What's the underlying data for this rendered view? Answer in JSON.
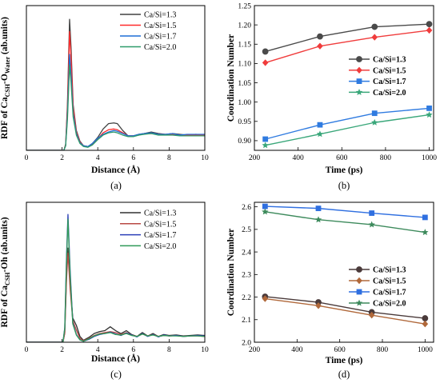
{
  "chart_data": [
    {
      "id": "a",
      "type": "line",
      "caption": "(a)",
      "xlabel": "Distance (Å)",
      "ylabel": {
        "pre": "RDF of Ca",
        "sub1": "CSH",
        "mid": "-O",
        "sub2": "Water",
        "post": " (ab.units)"
      },
      "xlim": [
        0,
        10
      ],
      "ylim": [
        0,
        9.5
      ],
      "xticks": [
        "0",
        "2",
        "4",
        "6",
        "8",
        "10"
      ],
      "yticks": [],
      "grid": false,
      "legend_position": "top-right",
      "colors": [
        "#404040",
        "#ff2a2a",
        "#1f6fd6",
        "#2e9b6a"
      ],
      "series": [
        {
          "name": "Ca/Si=1.3",
          "x": [
            0,
            2.1,
            2.2,
            2.3,
            2.42,
            2.5,
            2.62,
            2.8,
            3.0,
            3.2,
            3.45,
            3.7,
            4.0,
            4.3,
            4.6,
            4.9,
            5.1,
            5.4,
            5.7,
            6.0,
            6.3,
            6.6,
            7.0,
            7.4,
            7.8,
            8.2,
            8.6,
            9.0,
            9.5,
            10
          ],
          "y": [
            0,
            0,
            0.4,
            3.0,
            8.6,
            6.8,
            3.0,
            1.3,
            0.6,
            0.3,
            0.25,
            0.45,
            0.85,
            1.4,
            1.75,
            1.8,
            1.75,
            1.3,
            0.95,
            0.95,
            1.05,
            1.1,
            1.2,
            1.1,
            1.05,
            1.1,
            1.05,
            1.0,
            1.05,
            1.0
          ]
        },
        {
          "name": "Ca/Si=1.5",
          "x": [
            0,
            2.1,
            2.2,
            2.3,
            2.42,
            2.5,
            2.62,
            2.8,
            3.0,
            3.2,
            3.45,
            3.7,
            4.0,
            4.3,
            4.6,
            4.9,
            5.1,
            5.4,
            5.7,
            6.0,
            6.3,
            6.6,
            7.0,
            7.4,
            7.8,
            8.2,
            8.6,
            9.0,
            9.5,
            10
          ],
          "y": [
            0,
            0,
            0.35,
            2.7,
            7.8,
            6.1,
            2.8,
            1.2,
            0.55,
            0.3,
            0.25,
            0.4,
            0.75,
            1.15,
            1.35,
            1.4,
            1.35,
            1.15,
            0.95,
            0.95,
            1.0,
            1.1,
            1.1,
            1.05,
            1.05,
            1.05,
            1.0,
            1.0,
            1.0,
            1.0
          ]
        },
        {
          "name": "Ca/Si=1.7",
          "x": [
            0,
            2.1,
            2.2,
            2.3,
            2.42,
            2.5,
            2.62,
            2.8,
            3.0,
            3.2,
            3.45,
            3.7,
            4.0,
            4.3,
            4.6,
            4.9,
            5.1,
            5.4,
            5.7,
            6.0,
            6.3,
            6.6,
            7.0,
            7.4,
            7.8,
            8.2,
            8.6,
            9.0,
            9.5,
            10
          ],
          "y": [
            0,
            0,
            0.3,
            2.3,
            6.3,
            5.0,
            2.4,
            1.1,
            0.5,
            0.3,
            0.25,
            0.45,
            0.8,
            1.05,
            1.2,
            1.3,
            1.25,
            1.1,
            0.95,
            0.95,
            1.05,
            1.1,
            1.15,
            1.05,
            1.05,
            1.1,
            1.0,
            1.05,
            1.05,
            1.05
          ]
        },
        {
          "name": "Ca/Si=2.0",
          "x": [
            0,
            2.1,
            2.2,
            2.3,
            2.42,
            2.5,
            2.62,
            2.8,
            3.0,
            3.2,
            3.45,
            3.7,
            4.0,
            4.3,
            4.6,
            4.9,
            5.1,
            5.4,
            5.7,
            6.0,
            6.3,
            6.6,
            7.0,
            7.4,
            7.8,
            8.2,
            8.6,
            9.0,
            9.5,
            10
          ],
          "y": [
            0,
            0,
            0.3,
            2.0,
            5.6,
            4.5,
            2.2,
            1.0,
            0.45,
            0.25,
            0.2,
            0.35,
            0.7,
            1.0,
            1.15,
            1.2,
            1.15,
            1.0,
            0.9,
            0.9,
            1.0,
            1.05,
            1.1,
            1.0,
            1.0,
            1.0,
            0.95,
            0.95,
            0.95,
            0.95
          ]
        }
      ]
    },
    {
      "id": "b",
      "type": "line",
      "caption": "(b)",
      "xlabel": "Time (ps)",
      "ylabel": "Coordination Number",
      "xlim": [
        200,
        1020
      ],
      "ylim": [
        0.875,
        1.25
      ],
      "xticks": [
        200,
        400,
        600,
        800,
        1000
      ],
      "yticks": [
        "0.90",
        "0.95",
        "1.00",
        "1.05",
        "1.10",
        "1.15",
        "1.20",
        "1.25"
      ],
      "yticks_values": [
        0.9,
        0.95,
        1.0,
        1.05,
        1.1,
        1.15,
        1.2,
        1.25
      ],
      "grid": false,
      "legend_position": "right-middle",
      "colors": [
        "#4a4a4a",
        "#f03c3c",
        "#2f7be0",
        "#3aa77a"
      ],
      "markers": [
        "circle",
        "diamond",
        "square",
        "star"
      ],
      "x": [
        250,
        500,
        750,
        1000
      ],
      "series": [
        {
          "name": "Ca/Si=1.3",
          "values": [
            1.131,
            1.17,
            1.195,
            1.202
          ]
        },
        {
          "name": "Ca/Si=1.5",
          "values": [
            1.102,
            1.145,
            1.168,
            1.186
          ]
        },
        {
          "name": "Ca/Si=1.7",
          "values": [
            0.904,
            0.941,
            0.971,
            0.984
          ]
        },
        {
          "name": "Ca/Si=2.0",
          "values": [
            0.888,
            0.917,
            0.947,
            0.967
          ]
        }
      ]
    },
    {
      "id": "c",
      "type": "line",
      "caption": "(c)",
      "xlabel": "Distance (Å)",
      "ylabel": {
        "pre": "RDF of Ca",
        "sub1": "CSH",
        "mid": "-Oh",
        "sub2": "",
        "post": " (ab.units)"
      },
      "xlim": [
        0,
        10
      ],
      "ylim": [
        0,
        29
      ],
      "xticks": [
        "0",
        "2",
        "4",
        "6",
        "8",
        "10"
      ],
      "yticks": [],
      "grid": false,
      "legend_position": "top-right",
      "colors": [
        "#303030",
        "#b84a44",
        "#2b3fb8",
        "#2f9a58"
      ],
      "series": [
        {
          "name": "Ca/Si=1.3",
          "x": [
            0,
            2.05,
            2.15,
            2.25,
            2.33,
            2.45,
            2.6,
            2.8,
            3.0,
            3.2,
            3.5,
            3.8,
            4.1,
            4.4,
            4.7,
            5.0,
            5.3,
            5.6,
            5.9,
            6.2,
            6.5,
            6.8,
            7.1,
            7.4,
            7.7,
            8.0,
            8.4,
            8.8,
            9.2,
            9.6,
            10
          ],
          "y": [
            0,
            0,
            2.0,
            14.0,
            19.5,
            12.0,
            5.0,
            3.5,
            1.2,
            0.4,
            1.0,
            1.8,
            2.2,
            2.4,
            3.2,
            2.4,
            1.8,
            2.4,
            1.6,
            1.2,
            2.0,
            1.3,
            1.8,
            1.2,
            1.6,
            1.4,
            1.5,
            1.3,
            1.4,
            1.5,
            1.4
          ]
        },
        {
          "name": "Ca/Si=1.5",
          "x": [
            0,
            2.05,
            2.15,
            2.25,
            2.33,
            2.45,
            2.6,
            2.8,
            3.0,
            3.2,
            3.5,
            3.8,
            4.1,
            4.4,
            4.7,
            5.0,
            5.3,
            5.6,
            5.9,
            6.2,
            6.5,
            6.8,
            7.1,
            7.4,
            7.7,
            8.0,
            8.4,
            8.8,
            9.2,
            9.6,
            10
          ],
          "y": [
            0,
            0,
            1.8,
            13.0,
            18.5,
            11.0,
            4.5,
            2.5,
            0.8,
            0.3,
            0.8,
            1.4,
            1.8,
            2.0,
            2.2,
            2.0,
            1.6,
            2.0,
            1.5,
            1.2,
            1.7,
            1.3,
            1.6,
            1.2,
            1.4,
            1.3,
            1.4,
            1.2,
            1.3,
            1.3,
            1.2
          ]
        },
        {
          "name": "Ca/Si=1.7",
          "x": [
            0,
            2.05,
            2.15,
            2.25,
            2.33,
            2.45,
            2.6,
            2.8,
            3.0,
            3.2,
            3.5,
            3.8,
            4.1,
            4.4,
            4.7,
            5.0,
            5.3,
            5.6,
            5.9,
            6.2,
            6.5,
            6.8,
            7.1,
            7.4,
            7.7,
            8.0,
            8.4,
            8.8,
            9.2,
            9.6,
            10
          ],
          "y": [
            0,
            0,
            3.0,
            18.0,
            26.5,
            15.0,
            4.0,
            1.6,
            0.5,
            0.2,
            0.6,
            1.2,
            1.6,
            1.8,
            2.1,
            1.7,
            1.4,
            1.9,
            1.5,
            1.1,
            1.8,
            1.2,
            1.6,
            1.1,
            1.5,
            1.3,
            1.4,
            1.2,
            1.3,
            1.4,
            1.3
          ]
        },
        {
          "name": "Ca/Si=2.0",
          "x": [
            0,
            2.05,
            2.15,
            2.25,
            2.33,
            2.45,
            2.6,
            2.8,
            3.0,
            3.2,
            3.5,
            3.8,
            4.1,
            4.4,
            4.7,
            5.0,
            5.3,
            5.6,
            5.9,
            6.2,
            6.5,
            6.8,
            7.1,
            7.4,
            7.7,
            8.0,
            8.4,
            8.8,
            9.2,
            9.6,
            10
          ],
          "y": [
            0,
            0,
            2.8,
            17.0,
            25.5,
            14.0,
            3.8,
            1.5,
            0.5,
            0.2,
            0.7,
            1.3,
            1.7,
            1.8,
            2.0,
            1.6,
            1.5,
            1.8,
            1.4,
            1.2,
            1.7,
            1.3,
            1.5,
            1.2,
            1.4,
            1.3,
            1.3,
            1.2,
            1.3,
            1.3,
            1.2
          ]
        }
      ]
    },
    {
      "id": "d",
      "type": "line",
      "caption": "(d)",
      "xlabel": "Time (ps)",
      "ylabel": "Coordination Number",
      "xlim": [
        200,
        1040
      ],
      "ylim": [
        2.0,
        2.62
      ],
      "xticks": [
        200,
        400,
        600,
        800,
        1000
      ],
      "yticks": [
        "2.0",
        "2.1",
        "2.2",
        "2.3",
        "2.4",
        "2.5",
        "2.6"
      ],
      "yticks_values": [
        2.0,
        2.1,
        2.2,
        2.3,
        2.4,
        2.5,
        2.6
      ],
      "grid": false,
      "legend_position": "center-right",
      "colors": [
        "#4a3a3a",
        "#b0683a",
        "#2f6fe0",
        "#3d8a5c"
      ],
      "markers": [
        "circle",
        "diamond",
        "square",
        "star"
      ],
      "x": [
        250,
        500,
        750,
        1000
      ],
      "series": [
        {
          "name": "Ca/Si=1.3",
          "values": [
            2.202,
            2.177,
            2.133,
            2.106
          ]
        },
        {
          "name": "Ca/Si=1.5",
          "values": [
            2.193,
            2.162,
            2.12,
            2.081
          ]
        },
        {
          "name": "Ca/Si=1.7",
          "values": [
            2.602,
            2.593,
            2.572,
            2.553
          ]
        },
        {
          "name": "Ca/Si=2.0",
          "values": [
            2.578,
            2.543,
            2.521,
            2.487
          ]
        }
      ]
    }
  ]
}
